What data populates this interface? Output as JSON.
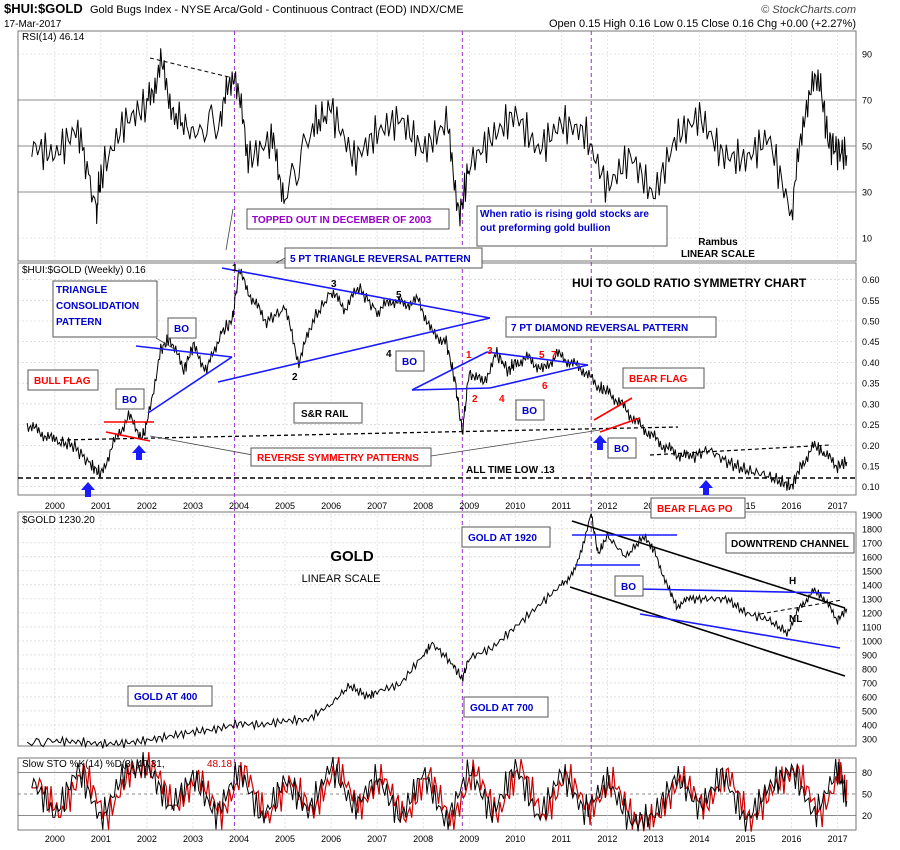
{
  "header": {
    "symbol": "$HUI:$GOLD",
    "description": "Gold Bugs Index - NYSE Arca/Gold - Continuous Contract (EOD) INDX/CME",
    "date": "17-Mar-2017",
    "quote": "Open 0.15  High 0.16  Low 0.15  Close 0.16  Chg +0.00 (+2.27%)",
    "watermark": "© StockCharts.com"
  },
  "colors": {
    "price": "#000000",
    "trend": "#1a1aff",
    "flag": "#ff0000",
    "callout_blue": "#0000cc",
    "callout_red": "#ff0000",
    "callout_purple": "#9900cc",
    "vline": "#9933cc",
    "grid": "#cccccc"
  },
  "chart_data": [
    {
      "type": "line",
      "panel": "rsi",
      "legend": "RSI(14) 46.14",
      "y_ticks": [
        10,
        30,
        50,
        70,
        90
      ],
      "ylim": [
        0,
        100
      ],
      "xlim": [
        1999.2,
        2017.4
      ],
      "reference_levels": [
        30,
        50,
        70
      ],
      "series": [
        {
          "x": [
            1999.5,
            2000.0,
            2000.5,
            2000.9,
            2001.0,
            2001.5,
            2002.0,
            2002.3,
            2002.6,
            2003.0,
            2003.6,
            2003.9,
            2004.2,
            2004.7,
            2005.0,
            2005.6,
            2006.0,
            2006.5,
            2007.0,
            2007.5,
            2008.0,
            2008.5,
            2008.8,
            2009.0,
            2009.5,
            2010.0,
            2010.5,
            2011.0,
            2011.5,
            2012.0,
            2012.5,
            2013.0,
            2013.5,
            2014.0,
            2014.5,
            2015.0,
            2015.5,
            2016.0,
            2016.3,
            2016.6,
            2016.8,
            2017.0,
            2017.2
          ],
          "values": [
            50,
            46,
            58,
            22,
            38,
            60,
            68,
            85,
            64,
            55,
            62,
            84,
            44,
            53,
            28,
            58,
            66,
            44,
            56,
            62,
            48,
            60,
            20,
            42,
            54,
            64,
            48,
            60,
            56,
            32,
            46,
            28,
            54,
            63,
            46,
            44,
            54,
            20,
            68,
            80,
            52,
            48,
            46
          ]
        }
      ],
      "annotations": [
        {
          "text": "TOPPED OUT IN DECEMBER OF 2003"
        },
        {
          "text": "When ratio is rising gold stocks are out preforming gold bullion"
        },
        {
          "text": "Rambus"
        },
        {
          "text": "LINEAR SCALE"
        }
      ]
    },
    {
      "type": "line",
      "panel": "ratio",
      "legend": "$HUI:$GOLD (Weekly) 0.16",
      "title": "HUI TO GOLD RATIO SYMMETRY CHART",
      "y_ticks": [
        0.1,
        0.15,
        0.2,
        0.25,
        0.3,
        0.35,
        0.4,
        0.45,
        0.5,
        0.55,
        0.6
      ],
      "ylim": [
        0.08,
        0.64
      ],
      "xlim": [
        1999.2,
        2017.4
      ],
      "series": [
        {
          "x": [
            1999.4,
            1999.7,
            2000.0,
            2000.4,
            2000.8,
            2001.0,
            2001.3,
            2001.6,
            2001.9,
            2002.0,
            2002.3,
            2002.5,
            2002.8,
            2003.0,
            2003.3,
            2003.6,
            2003.85,
            2004.0,
            2004.3,
            2004.6,
            2005.0,
            2005.3,
            2005.6,
            2006.0,
            2006.3,
            2006.6,
            2007.0,
            2007.3,
            2007.6,
            2007.9,
            2008.2,
            2008.5,
            2008.7,
            2008.85,
            2009.0,
            2009.3,
            2009.6,
            2009.85,
            2010.0,
            2010.3,
            2010.6,
            2010.9,
            2011.2,
            2011.5,
            2011.8,
            2012.0,
            2012.3,
            2012.6,
            2012.9,
            2013.2,
            2013.5,
            2013.8,
            2014.2,
            2014.6,
            2015.0,
            2015.4,
            2015.8,
            2016.0,
            2016.2,
            2016.5,
            2016.7,
            2017.0,
            2017.2
          ],
          "values": [
            0.25,
            0.23,
            0.21,
            0.2,
            0.15,
            0.13,
            0.21,
            0.27,
            0.22,
            0.25,
            0.43,
            0.46,
            0.38,
            0.44,
            0.38,
            0.47,
            0.5,
            0.62,
            0.55,
            0.5,
            0.53,
            0.4,
            0.5,
            0.57,
            0.53,
            0.58,
            0.52,
            0.55,
            0.54,
            0.55,
            0.47,
            0.45,
            0.35,
            0.23,
            0.38,
            0.35,
            0.42,
            0.38,
            0.4,
            0.41,
            0.38,
            0.42,
            0.4,
            0.38,
            0.34,
            0.33,
            0.3,
            0.26,
            0.23,
            0.2,
            0.18,
            0.17,
            0.19,
            0.16,
            0.14,
            0.13,
            0.11,
            0.1,
            0.15,
            0.2,
            0.18,
            0.15,
            0.16
          ]
        }
      ],
      "annotations": [
        {
          "text": "TRIANGLE CONSOLIDATION PATTERN"
        },
        {
          "text": "5 PT TRIANGLE REVERSAL PATTERN"
        },
        {
          "text": "7 PT DIAMOND REVERSAL PATTERN"
        },
        {
          "text": "BULL FLAG"
        },
        {
          "text": "BEAR FLAG"
        },
        {
          "text": "S&R RAIL"
        },
        {
          "text": "REVERSE SYMMETRY PATTERNS"
        },
        {
          "text": "ALL TIME LOW .13"
        },
        {
          "text": "BEAR FLAG PO"
        },
        {
          "text": "BO"
        }
      ],
      "triangle_points": [
        "1",
        "2",
        "3",
        "4",
        "5"
      ],
      "diamond_points": [
        "1",
        "2",
        "3",
        "4",
        "5",
        "6",
        "7"
      ]
    },
    {
      "type": "line",
      "panel": "gold",
      "legend": "$GOLD 1230.20",
      "title": "GOLD",
      "subtitle": "LINEAR SCALE",
      "y_ticks": [
        300,
        400,
        500,
        600,
        700,
        800,
        900,
        1000,
        1100,
        1200,
        1300,
        1400,
        1500,
        1600,
        1700,
        1800,
        1900
      ],
      "ylim": [
        250,
        1920
      ],
      "xlim": [
        1999.2,
        2017.4
      ],
      "series": [
        {
          "x": [
            1999.4,
            2000.0,
            2000.5,
            2001.0,
            2001.5,
            2002.0,
            2002.5,
            2003.0,
            2003.5,
            2004.0,
            2004.5,
            2005.0,
            2005.5,
            2006.0,
            2006.4,
            2006.8,
            2007.0,
            2007.5,
            2008.0,
            2008.2,
            2008.6,
            2008.85,
            2009.0,
            2009.5,
            2010.0,
            2010.5,
            2011.0,
            2011.3,
            2011.65,
            2011.8,
            2012.0,
            2012.4,
            2012.8,
            2013.0,
            2013.3,
            2013.5,
            2013.8,
            2014.2,
            2014.6,
            2015.0,
            2015.5,
            2015.9,
            2016.2,
            2016.5,
            2016.7,
            2017.0,
            2017.2
          ],
          "values": [
            270,
            285,
            280,
            265,
            270,
            290,
            320,
            350,
            370,
            410,
            400,
            430,
            440,
            550,
            680,
            600,
            640,
            690,
            900,
            980,
            850,
            730,
            880,
            950,
            1100,
            1250,
            1400,
            1500,
            1900,
            1620,
            1750,
            1600,
            1750,
            1650,
            1400,
            1250,
            1300,
            1300,
            1300,
            1200,
            1150,
            1060,
            1250,
            1360,
            1300,
            1150,
            1230
          ]
        }
      ],
      "annotations": [
        {
          "text": "GOLD AT 1920"
        },
        {
          "text": "GOLD AT 400"
        },
        {
          "text": "GOLD AT 700"
        },
        {
          "text": "DOWNTREND CHANNEL"
        },
        {
          "text": "BO"
        },
        {
          "text": "H"
        },
        {
          "text": "NL"
        }
      ]
    },
    {
      "type": "line",
      "panel": "stochastic",
      "legend_k": "Slow STO %K(14) %D(3) 40.31,",
      "legend_d": "48.18",
      "y_ticks": [
        20,
        50,
        80
      ],
      "ylim": [
        0,
        100
      ],
      "xlim": [
        1999.2,
        2017.4
      ],
      "reference_levels": [
        20,
        50,
        80
      ],
      "series": [
        {
          "name": "%K",
          "x": [
            1999.5,
            2000.0,
            2000.5,
            2001.0,
            2001.5,
            2002.0,
            2002.5,
            2003.0,
            2003.5,
            2004.0,
            2004.5,
            2005.0,
            2005.5,
            2006.0,
            2006.5,
            2007.0,
            2007.5,
            2008.0,
            2008.5,
            2009.0,
            2009.5,
            2010.0,
            2010.5,
            2011.0,
            2011.5,
            2012.0,
            2012.5,
            2013.0,
            2013.5,
            2014.0,
            2014.5,
            2015.0,
            2015.5,
            2016.0,
            2016.5,
            2017.0,
            2017.2
          ],
          "values": [
            70,
            20,
            85,
            15,
            80,
            90,
            30,
            75,
            20,
            85,
            15,
            70,
            25,
            90,
            30,
            75,
            15,
            80,
            10,
            85,
            20,
            90,
            15,
            80,
            25,
            70,
            10,
            20,
            75,
            30,
            80,
            10,
            60,
            85,
            20,
            85,
            40
          ]
        }
      ]
    }
  ],
  "x_axis_labels": [
    "2000",
    "2001",
    "2002",
    "2003",
    "2004",
    "2005",
    "2006",
    "2007",
    "2008",
    "2009",
    "2010",
    "2011",
    "2012",
    "2013",
    "2014",
    "2015",
    "2016",
    "2017"
  ]
}
